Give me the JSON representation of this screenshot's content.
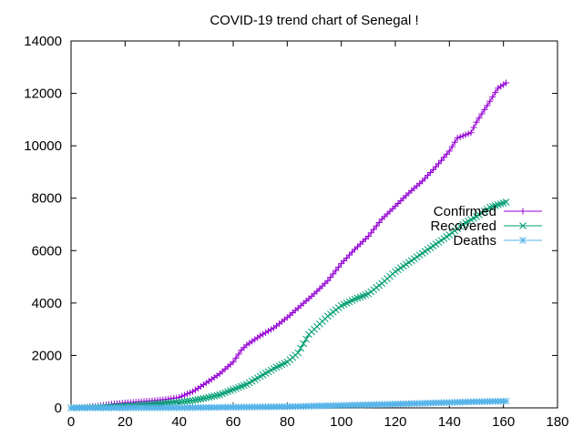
{
  "chart_data": {
    "type": "line",
    "title": "COVID-19 trend chart of Senegal !",
    "xlabel": "",
    "ylabel": "",
    "xlim": [
      0,
      180
    ],
    "ylim": [
      0,
      14000
    ],
    "x_ticks": [
      0,
      20,
      40,
      60,
      80,
      100,
      120,
      140,
      160,
      180
    ],
    "y_ticks": [
      0,
      2000,
      4000,
      6000,
      8000,
      10000,
      12000,
      14000
    ],
    "grid": false,
    "legend_position": "right",
    "series": [
      {
        "name": "Confirmed",
        "color": "#9400d3",
        "marker": "plus",
        "points": [
          [
            0,
            0
          ],
          [
            5,
            20
          ],
          [
            10,
            70
          ],
          [
            15,
            140
          ],
          [
            20,
            190
          ],
          [
            25,
            230
          ],
          [
            30,
            270
          ],
          [
            35,
            320
          ],
          [
            40,
            400
          ],
          [
            45,
            620
          ],
          [
            50,
            950
          ],
          [
            55,
            1300
          ],
          [
            60,
            1750
          ],
          [
            63,
            2200
          ],
          [
            65,
            2400
          ],
          [
            70,
            2750
          ],
          [
            75,
            3050
          ],
          [
            80,
            3450
          ],
          [
            85,
            3900
          ],
          [
            90,
            4350
          ],
          [
            95,
            4850
          ],
          [
            100,
            5500
          ],
          [
            105,
            6050
          ],
          [
            110,
            6550
          ],
          [
            115,
            7200
          ],
          [
            120,
            7700
          ],
          [
            125,
            8200
          ],
          [
            130,
            8650
          ],
          [
            135,
            9200
          ],
          [
            140,
            9800
          ],
          [
            143,
            10300
          ],
          [
            148,
            10500
          ],
          [
            150,
            10900
          ],
          [
            155,
            11700
          ],
          [
            158,
            12200
          ],
          [
            161,
            12400
          ]
        ]
      },
      {
        "name": "Recovered",
        "color": "#009e73",
        "marker": "cross",
        "points": [
          [
            0,
            0
          ],
          [
            10,
            20
          ],
          [
            20,
            70
          ],
          [
            30,
            140
          ],
          [
            40,
            220
          ],
          [
            45,
            280
          ],
          [
            50,
            380
          ],
          [
            55,
            500
          ],
          [
            60,
            700
          ],
          [
            65,
            900
          ],
          [
            70,
            1200
          ],
          [
            75,
            1500
          ],
          [
            80,
            1750
          ],
          [
            84,
            2100
          ],
          [
            88,
            2800
          ],
          [
            92,
            3200
          ],
          [
            95,
            3500
          ],
          [
            100,
            3900
          ],
          [
            105,
            4150
          ],
          [
            110,
            4350
          ],
          [
            115,
            4750
          ],
          [
            120,
            5200
          ],
          [
            125,
            5550
          ],
          [
            130,
            5900
          ],
          [
            135,
            6250
          ],
          [
            140,
            6600
          ],
          [
            145,
            7000
          ],
          [
            150,
            7300
          ],
          [
            155,
            7650
          ],
          [
            161,
            7850
          ]
        ]
      },
      {
        "name": "Deaths",
        "color": "#56b4e9",
        "marker": "star",
        "points": [
          [
            0,
            0
          ],
          [
            20,
            1
          ],
          [
            40,
            5
          ],
          [
            50,
            15
          ],
          [
            60,
            25
          ],
          [
            70,
            35
          ],
          [
            80,
            45
          ],
          [
            90,
            70
          ],
          [
            100,
            95
          ],
          [
            110,
            120
          ],
          [
            120,
            145
          ],
          [
            130,
            175
          ],
          [
            140,
            205
          ],
          [
            150,
            235
          ],
          [
            161,
            255
          ]
        ]
      }
    ]
  }
}
